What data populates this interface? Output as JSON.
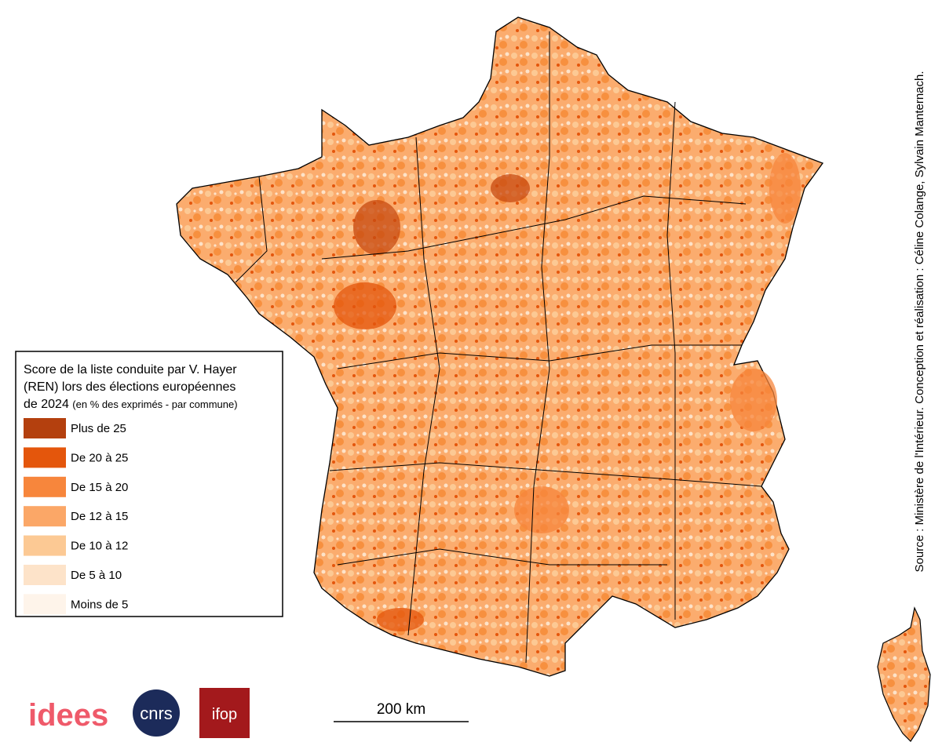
{
  "legend": {
    "title_lines": [
      "Score de la liste conduite par V. Hayer",
      "(REN) lors des élections européennes",
      "de 2024"
    ],
    "title_note": "(en % des exprimés - par commune)",
    "items": [
      {
        "label": "Plus de 25",
        "color": "#b4400e"
      },
      {
        "label": "De 20 à 25",
        "color": "#e4560c"
      },
      {
        "label": "De 15 à 20",
        "color": "#f7863c"
      },
      {
        "label": "De 12 à 15",
        "color": "#fba767"
      },
      {
        "label": "De 10 à 12",
        "color": "#fcc994"
      },
      {
        "label": "De 5 à 10",
        "color": "#fde3c9"
      },
      {
        "label": "Moins de 5",
        "color": "#fef4ea"
      }
    ]
  },
  "source": "Source : Ministère de l'Intérieur. Conception et réalisation : Céline Colange, Sylvain Manternach.",
  "scale_bar": "200 km",
  "logos": {
    "idees": "idees",
    "cnrs": "cnrs",
    "ifop": "ifop"
  }
}
